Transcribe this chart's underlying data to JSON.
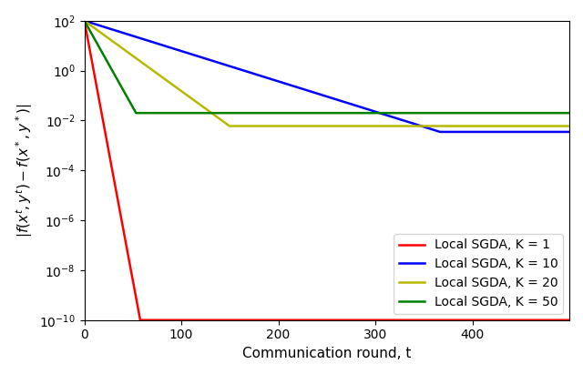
{
  "title": "",
  "xlabel": "Communication round, t",
  "xlim": [
    0,
    500
  ],
  "ylim_log": [
    -10,
    2
  ],
  "legend_entries": [
    {
      "label": "Local SGDA, K = 1",
      "color": "red"
    },
    {
      "label": "Local SGDA, K = 10",
      "color": "blue"
    },
    {
      "label": "Local SGDA, K = 20",
      "color": "#b8b800"
    },
    {
      "label": "Local SGDA, K = 50",
      "color": "green"
    }
  ],
  "curves": [
    {
      "start": 100,
      "floor": 1e-10,
      "rate": 0.48,
      "label": "Local SGDA, K = 1",
      "color": "red"
    },
    {
      "start": 100,
      "floor": 0.0035,
      "rate": 0.028,
      "label": "Local SGDA, K = 10",
      "color": "blue"
    },
    {
      "start": 100,
      "floor": 0.006,
      "rate": 0.065,
      "label": "Local SGDA, K = 20",
      "color": "#b8b800"
    },
    {
      "start": 100,
      "floor": 0.02,
      "rate": 0.16,
      "label": "Local SGDA, K = 50",
      "color": "green"
    }
  ]
}
